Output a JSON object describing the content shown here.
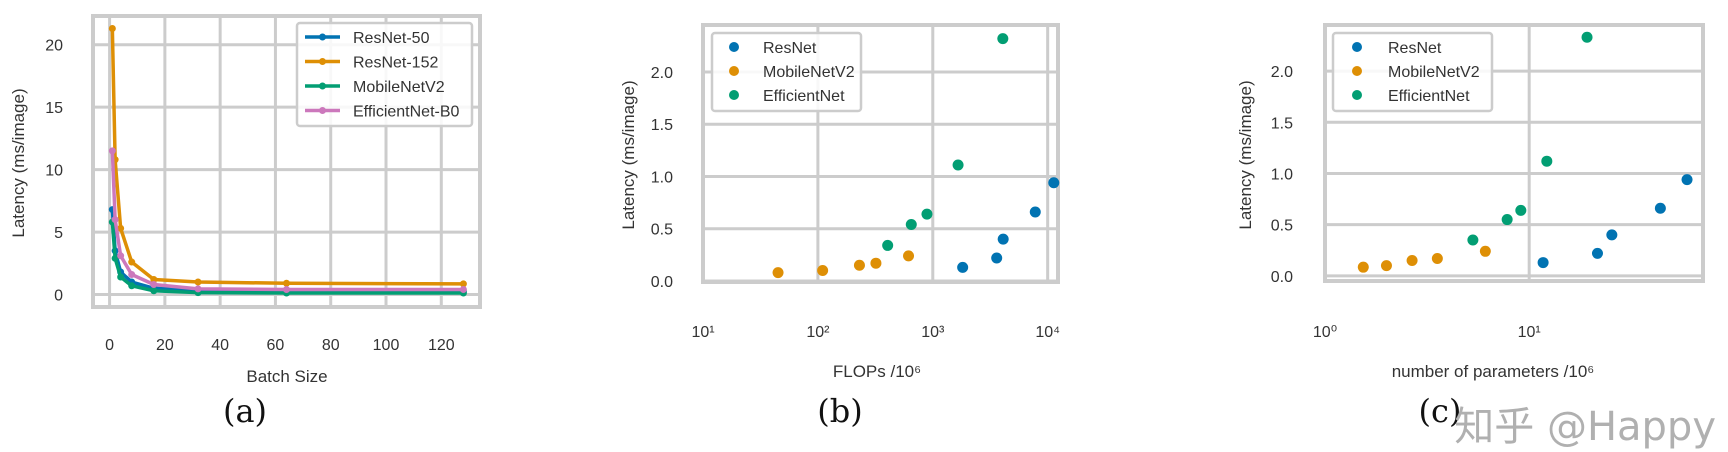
{
  "colors": {
    "ResNet": "#0173b2",
    "ResNet-50": "#0173b2",
    "ResNet-152": "#de8f05",
    "MobileNetV2": "#029e73",
    "EfficientNet-B0": "#cc78bc",
    "MobileNetV2_scatter": "#de8f05",
    "EfficientNet": "#029e73",
    "grid": "#cccccc"
  },
  "watermark": "知乎 @Happy",
  "chart_data": [
    {
      "type": "line",
      "caption": "(a)",
      "xlabel": "Batch Size",
      "ylabel": "Latency (ms/image)",
      "xlim": [
        -6,
        134
      ],
      "ylim": [
        -1,
        22.3
      ],
      "xticks": [
        0,
        20,
        40,
        60,
        80,
        100,
        120
      ],
      "xtick_labels": [
        "0",
        "20",
        "40",
        "60",
        "80",
        "100",
        "120"
      ],
      "yticks": [
        0,
        5,
        10,
        15,
        20
      ],
      "ytick_labels": [
        "0",
        "5",
        "10",
        "15",
        "20"
      ],
      "grid": true,
      "legend": "top-right",
      "x": [
        1,
        2,
        4,
        8,
        16,
        32,
        64,
        128
      ],
      "series": [
        {
          "name": "ResNet-50",
          "color": "#0173b2",
          "values": [
            6.8,
            3.5,
            1.8,
            1.0,
            0.5,
            0.35,
            0.3,
            0.25
          ]
        },
        {
          "name": "ResNet-152",
          "color": "#de8f05",
          "values": [
            21.3,
            10.8,
            5.3,
            2.6,
            1.2,
            1.0,
            0.9,
            0.85
          ]
        },
        {
          "name": "MobileNetV2",
          "color": "#029e73",
          "values": [
            5.8,
            2.9,
            1.4,
            0.7,
            0.3,
            0.15,
            0.12,
            0.12
          ]
        },
        {
          "name": "EfficientNet-B0",
          "color": "#cc78bc",
          "values": [
            11.5,
            6.0,
            3.1,
            1.6,
            0.8,
            0.45,
            0.4,
            0.4
          ]
        }
      ]
    },
    {
      "type": "scatter",
      "caption": "(b)",
      "xlabel": "FLOPs /10⁶",
      "ylabel": "Latency (ms/image)",
      "xscale": "log",
      "xlim": [
        10,
        12300
      ],
      "ylim": [
        -0.01,
        2.45
      ],
      "xticks": [
        10,
        100,
        1000,
        10000
      ],
      "xtick_labels": [
        "10¹",
        "10²",
        "10³",
        "10⁴"
      ],
      "yticks": [
        0,
        0.5,
        1.0,
        1.5,
        2.0
      ],
      "ytick_labels": [
        "0.0",
        "0.5",
        "1.0",
        "1.5",
        "2.0"
      ],
      "grid": true,
      "legend": "top-left",
      "series": [
        {
          "name": "ResNet",
          "color": "#0173b2",
          "x": [
            1820,
            3600,
            4100,
            7800,
            11300
          ],
          "y": [
            0.13,
            0.22,
            0.4,
            0.66,
            0.94
          ]
        },
        {
          "name": "MobileNetV2",
          "color": "#de8f05",
          "x": [
            45,
            110,
            230,
            320,
            615
          ],
          "y": [
            0.08,
            0.1,
            0.15,
            0.17,
            0.24
          ]
        },
        {
          "name": "EfficientNet",
          "color": "#029e73",
          "x": [
            405,
            650,
            890,
            1660,
            4070
          ],
          "y": [
            0.34,
            0.54,
            0.64,
            1.11,
            2.32
          ]
        }
      ]
    },
    {
      "type": "scatter",
      "caption": "(c)",
      "xlabel": "number of parameters /10⁶",
      "ylabel": "Latency (ms/image)",
      "xscale": "log",
      "xlim": [
        1,
        71
      ],
      "ylim": [
        -0.05,
        2.45
      ],
      "xticks": [
        1,
        10
      ],
      "xtick_labels": [
        "10⁰",
        "10¹"
      ],
      "yticks": [
        0,
        0.5,
        1.0,
        1.5,
        2.0
      ],
      "ytick_labels": [
        "0.0",
        "0.5",
        "1.0",
        "1.5",
        "2.0"
      ],
      "grid": true,
      "legend": "top-left",
      "series": [
        {
          "name": "ResNet",
          "color": "#0173b2",
          "x": [
            11.7,
            21.6,
            25.4,
            43.9,
            59.3
          ],
          "y": [
            0.13,
            0.22,
            0.4,
            0.66,
            0.94
          ]
        },
        {
          "name": "MobileNetV2",
          "color": "#de8f05",
          "x": [
            1.54,
            2.0,
            2.67,
            3.55,
            6.1
          ],
          "y": [
            0.085,
            0.1,
            0.15,
            0.17,
            0.24
          ]
        },
        {
          "name": "EfficientNet",
          "color": "#029e73",
          "x": [
            5.3,
            7.8,
            9.1,
            12.2,
            19.2
          ],
          "y": [
            0.35,
            0.55,
            0.64,
            1.12,
            2.33
          ]
        }
      ]
    }
  ]
}
